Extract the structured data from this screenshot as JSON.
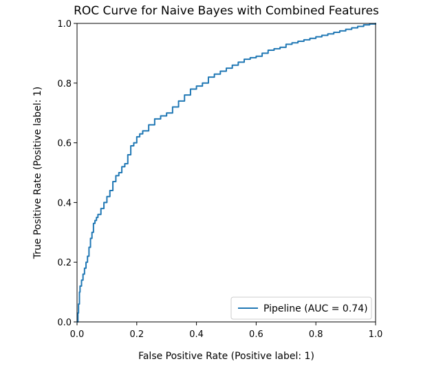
{
  "chart_data": {
    "type": "line",
    "title": "ROC Curve for Naive Bayes with Combined Features",
    "xlabel": "False Positive Rate (Positive label: 1)",
    "ylabel": "True Positive Rate (Positive label: 1)",
    "xlim": [
      0.0,
      1.0
    ],
    "ylim": [
      0.0,
      1.0
    ],
    "xticks": [
      "0.0",
      "0.2",
      "0.4",
      "0.6",
      "0.8",
      "1.0"
    ],
    "yticks": [
      "0.0",
      "0.2",
      "0.4",
      "0.6",
      "0.8",
      "1.0"
    ],
    "grid": false,
    "legend_position": "lower-right",
    "colors": {
      "series": "#1f77b4",
      "axes": "#000000",
      "background": "#ffffff"
    },
    "series": [
      {
        "name": "Pipeline (AUC = 0.74)",
        "x": [
          0.0,
          0.003,
          0.005,
          0.008,
          0.01,
          0.015,
          0.02,
          0.025,
          0.03,
          0.035,
          0.04,
          0.045,
          0.05,
          0.055,
          0.06,
          0.065,
          0.07,
          0.08,
          0.09,
          0.1,
          0.11,
          0.12,
          0.13,
          0.14,
          0.15,
          0.16,
          0.17,
          0.18,
          0.19,
          0.2,
          0.21,
          0.22,
          0.24,
          0.26,
          0.28,
          0.3,
          0.32,
          0.34,
          0.36,
          0.38,
          0.4,
          0.42,
          0.44,
          0.46,
          0.48,
          0.5,
          0.52,
          0.54,
          0.56,
          0.58,
          0.6,
          0.62,
          0.64,
          0.66,
          0.68,
          0.7,
          0.72,
          0.74,
          0.76,
          0.78,
          0.8,
          0.82,
          0.84,
          0.86,
          0.88,
          0.9,
          0.92,
          0.94,
          0.96,
          0.98,
          1.0
        ],
        "y": [
          0.0,
          0.03,
          0.06,
          0.1,
          0.12,
          0.14,
          0.16,
          0.18,
          0.2,
          0.22,
          0.25,
          0.28,
          0.3,
          0.33,
          0.34,
          0.35,
          0.36,
          0.38,
          0.4,
          0.42,
          0.44,
          0.47,
          0.49,
          0.5,
          0.52,
          0.53,
          0.56,
          0.59,
          0.6,
          0.62,
          0.63,
          0.64,
          0.66,
          0.68,
          0.69,
          0.7,
          0.72,
          0.74,
          0.76,
          0.78,
          0.79,
          0.8,
          0.82,
          0.83,
          0.84,
          0.85,
          0.86,
          0.87,
          0.88,
          0.885,
          0.89,
          0.9,
          0.91,
          0.915,
          0.92,
          0.93,
          0.935,
          0.94,
          0.945,
          0.95,
          0.955,
          0.96,
          0.965,
          0.97,
          0.975,
          0.98,
          0.985,
          0.99,
          0.995,
          0.998,
          1.0
        ]
      }
    ]
  }
}
